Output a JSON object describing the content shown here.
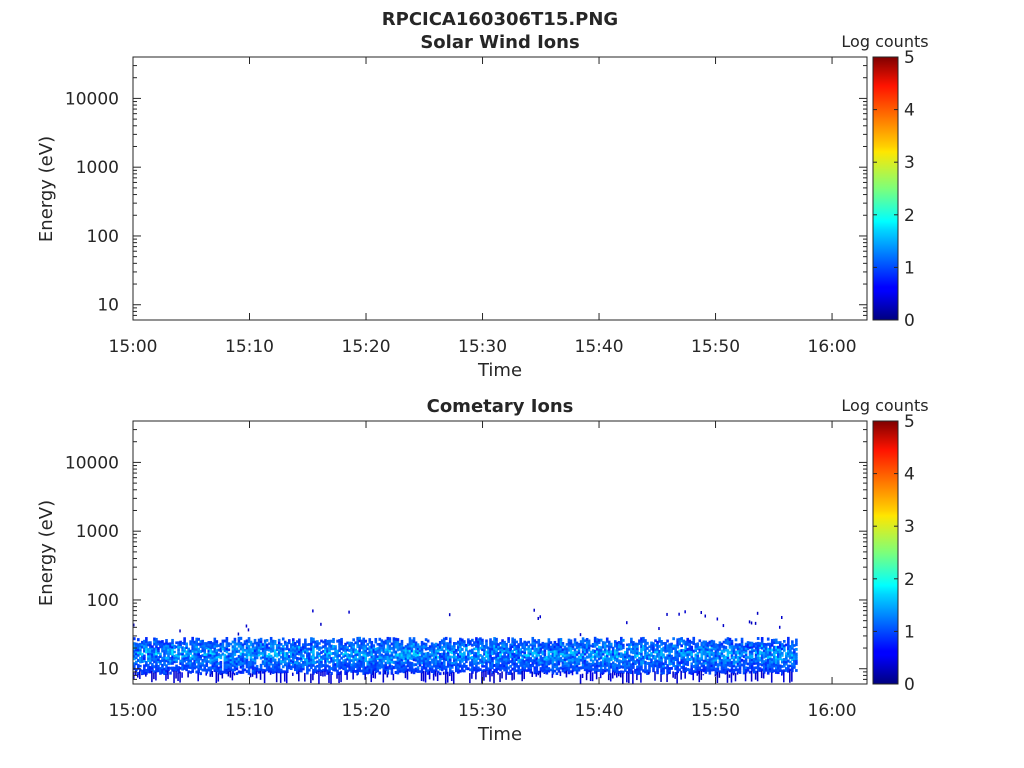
{
  "figure": {
    "title": "RPCICA160306T15.PNG"
  },
  "chart_data": [
    {
      "type": "heatmap",
      "title": "Solar Wind Ions",
      "xlabel": "Time",
      "ylabel": "Energy (eV)",
      "x_ticks": [
        "15:00",
        "15:10",
        "15:20",
        "15:30",
        "15:40",
        "15:50",
        "16:00"
      ],
      "xlim": [
        "15:00",
        "16:03"
      ],
      "y_scale": "log",
      "y_ticks": [
        10,
        100,
        1000,
        10000
      ],
      "y_tick_labels": [
        "10",
        "100",
        "1000",
        "10000"
      ],
      "ylim": [
        6,
        40000
      ],
      "colorbar": {
        "label": "Log counts",
        "range": [
          0,
          5
        ],
        "ticks": [
          "0",
          "1",
          "2",
          "3",
          "4",
          "5"
        ],
        "colormap": "jet"
      },
      "data": {
        "description_of_content": "empty",
        "cells": []
      }
    },
    {
      "type": "heatmap",
      "title": "Cometary Ions",
      "xlabel": "Time",
      "ylabel": "Energy (eV)",
      "x_ticks": [
        "15:00",
        "15:10",
        "15:20",
        "15:30",
        "15:40",
        "15:50",
        "16:00"
      ],
      "xlim": [
        "15:00",
        "16:03"
      ],
      "y_scale": "log",
      "y_ticks": [
        10,
        100,
        1000,
        10000
      ],
      "y_tick_labels": [
        "10",
        "100",
        "1000",
        "10000"
      ],
      "ylim": [
        6,
        40000
      ],
      "colorbar": {
        "label": "Log counts",
        "range": [
          0,
          5
        ],
        "ticks": [
          "0",
          "1",
          "2",
          "3",
          "4",
          "5"
        ],
        "colormap": "jet"
      },
      "data": {
        "time_start": "15:00",
        "time_end": "15:57",
        "main_band_energy_eV": [
          9,
          26
        ],
        "scattered_energy_range_eV": [
          6,
          80
        ],
        "log_counts_range": [
          0.3,
          2.0
        ]
      }
    }
  ]
}
